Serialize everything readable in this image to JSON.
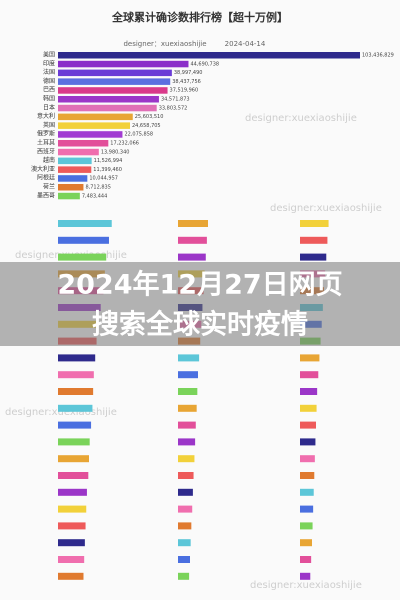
{
  "headline": [
    "2024年12月27日网页",
    "搜索全球实时疫情"
  ],
  "watermark": "designer:xuexiaoshijie",
  "chart_data": [
    {
      "type": "bar",
      "title": "全球累计确诊数排行榜【超十万例】",
      "subtitle": "designer：xuexiaoshijie",
      "date": "2024-04-14",
      "categories": [
        "美国",
        "印度",
        "法国",
        "德国",
        "巴西",
        "韩国",
        "日本",
        "意大利",
        "英国",
        "俄罗斯",
        "土耳其",
        "西班牙",
        "越南",
        "澳大利亚",
        "阿根廷",
        "荷兰",
        "墨西哥"
      ],
      "values": [
        103436829,
        44690738,
        38997490,
        38437756,
        37519960,
        34571873,
        33803572,
        25603510,
        24658705,
        22075858,
        17232066,
        13980340,
        11526994,
        11399460,
        10044957,
        8712835,
        7483444
      ],
      "value_labels": [
        "103,436,829",
        "44,690,738",
        "38,997,490",
        "38,437,756",
        "37,519,960",
        "34,571,873",
        "33,803,572",
        "25,603,510",
        "24,658,705",
        "22,075,858",
        "17,232,066",
        "13,980,340",
        "11,526,994",
        "11,399,460",
        "10,044,957",
        "8,712,835",
        "7,483,444"
      ],
      "colors": [
        "#2e2a8c",
        "#8b2fc9",
        "#6a3cd6",
        "#5b6fe0",
        "#d93a8a",
        "#9b36c8",
        "#e06fb6",
        "#e8a534",
        "#f2d13a",
        "#a13bd2",
        "#e24f9a",
        "#f06eae",
        "#5cc6d8",
        "#ee5a5a",
        "#4a6fe0",
        "#e07a2f",
        "#7ad35a"
      ],
      "xlim": [
        0,
        103436829
      ]
    },
    {
      "type": "bar",
      "values": [
        3900000,
        3700000,
        3500000,
        3400000,
        3300000,
        3100000,
        2900000,
        2800000,
        2700000,
        2600000,
        2550000,
        2500000,
        2400000,
        2300000,
        2250000,
        2200000,
        2100000,
        2050000,
        2000000,
        1950000,
        1900000,
        1850000
      ],
      "xlim": [
        0,
        4500000
      ]
    },
    {
      "type": "bar",
      "values": [
        1350000,
        1300000,
        1250000,
        1200000,
        1150000,
        1100000,
        1050000,
        1000000,
        950000,
        900000,
        870000,
        840000,
        800000,
        770000,
        740000,
        700000,
        670000,
        640000,
        600000,
        570000,
        540000,
        500000
      ],
      "xlim": [
        0,
        1800000
      ]
    },
    {
      "type": "bar",
      "values": [
        500000,
        480000,
        460000,
        440000,
        420000,
        400000,
        380000,
        360000,
        340000,
        320000,
        300000,
        290000,
        280000,
        270000,
        260000,
        250000,
        240000,
        230000,
        220000,
        210000,
        195000,
        180000
      ],
      "xlim": [
        0,
        700000
      ]
    }
  ]
}
